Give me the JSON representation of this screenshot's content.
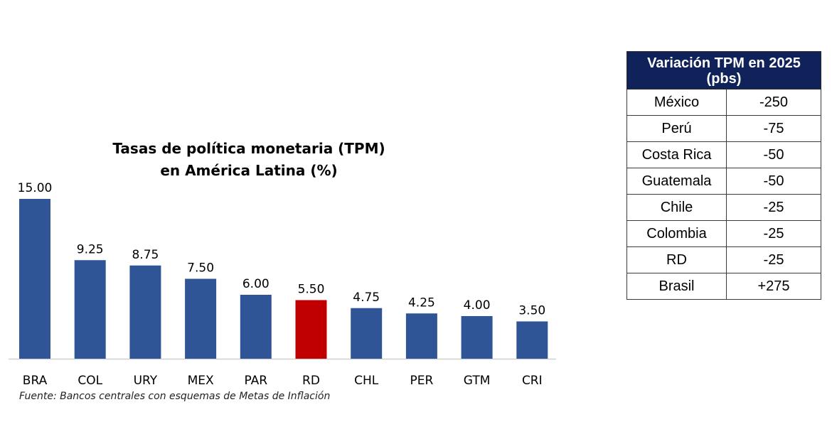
{
  "chart_data": {
    "type": "bar",
    "title_lines": [
      "Tasas de política monetaria (TPM)",
      "en América Latina (%)"
    ],
    "categories": [
      "BRA",
      "COL",
      "URY",
      "MEX",
      "PAR",
      "RD",
      "CHL",
      "PER",
      "GTM",
      "CRI"
    ],
    "values": [
      15.0,
      9.25,
      8.75,
      7.5,
      6.0,
      5.5,
      4.75,
      4.25,
      4.0,
      3.5
    ],
    "value_labels": [
      "15.00",
      "9.25",
      "8.75",
      "7.50",
      "6.00",
      "5.50",
      "4.75",
      "4.25",
      "4.00",
      "3.50"
    ],
    "highlight_category": "RD",
    "ylim": [
      0,
      15
    ],
    "grid": false,
    "colors": {
      "bar": "#2f5597",
      "highlight": "#c00000",
      "axis": "#d0d0d0"
    }
  },
  "source": "Fuente: Bancos centrales con esquemas de Metas de Inflación",
  "table": {
    "header": "Variación TPM en 2025 (pbs)",
    "header_color": "#0f2259",
    "rows": [
      {
        "country": "México",
        "value": "-250"
      },
      {
        "country": "Perú",
        "value": "-75"
      },
      {
        "country": "Costa Rica",
        "value": "-50"
      },
      {
        "country": "Guatemala",
        "value": "-50"
      },
      {
        "country": "Chile",
        "value": "-25"
      },
      {
        "country": "Colombia",
        "value": "-25"
      },
      {
        "country": "RD",
        "value": "-25"
      },
      {
        "country": "Brasil",
        "value": "+275"
      }
    ]
  }
}
